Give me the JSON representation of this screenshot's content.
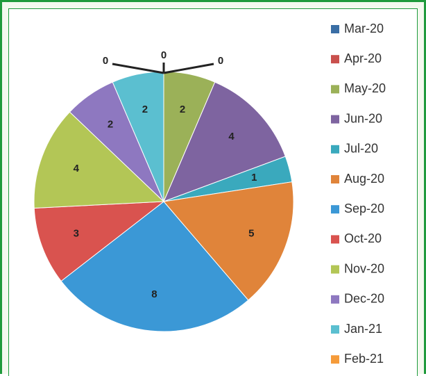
{
  "chart_data": {
    "type": "pie",
    "categories": [
      "Mar-20",
      "Apr-20",
      "May-20",
      "Jun-20",
      "Jul-20",
      "Aug-20",
      "Sep-20",
      "Oct-20",
      "Nov-20",
      "Dec-20",
      "Jan-21",
      "Feb-21"
    ],
    "values": [
      0,
      0,
      2,
      4,
      1,
      5,
      8,
      3,
      4,
      2,
      2,
      0
    ],
    "colors": [
      "#3a6ea5",
      "#c9504d",
      "#9bb158",
      "#7e64a0",
      "#3aa9bd",
      "#e0843a",
      "#3b98d6",
      "#d9534f",
      "#b3c656",
      "#8e78c0",
      "#5bbfd0",
      "#f59b3a"
    ],
    "legend": "right"
  }
}
